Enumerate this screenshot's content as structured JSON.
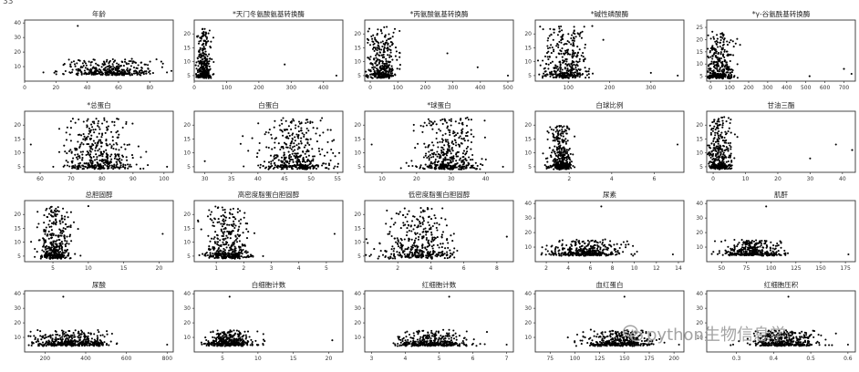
{
  "figure_label": "33",
  "watermark": {
    "text": "python生物信息学",
    "icon": "wechat-icon"
  },
  "style": {
    "point_color": "#000000",
    "frame_color": "#333333",
    "background": "#ffffff"
  },
  "chart_data": [
    {
      "type": "scatter",
      "title": "年龄",
      "xticks": [
        "0",
        "20",
        "40",
        "60",
        "80"
      ],
      "xlim": [
        0,
        95
      ],
      "yticks": [
        "10",
        "20",
        "30",
        "40"
      ],
      "ylim": [
        0,
        42
      ],
      "ymin": 4,
      "ymax": 40,
      "points": [
        [
          12,
          6
        ],
        [
          34,
          38
        ],
        [
          91,
          6
        ]
      ],
      "clusters": [
        {
          "cx": 55,
          "sx": 14,
          "base": 4,
          "spread": 10,
          "n": 360
        }
      ]
    },
    {
      "type": "scatter",
      "title": "*天门冬氨酸氨基转换酶",
      "xticks": [
        "0",
        "100",
        "200",
        "300",
        "400"
      ],
      "xlim": [
        0,
        460
      ],
      "yticks": [
        "5",
        "10",
        "15",
        "20"
      ],
      "ylim": [
        3,
        25
      ],
      "ymin": 4,
      "ymax": 23,
      "points": [
        [
          280,
          9
        ],
        [
          440,
          5
        ]
      ],
      "clusters": [
        {
          "cx": 30,
          "sx": 10,
          "base": 4,
          "spread": 18,
          "n": 340
        }
      ]
    },
    {
      "type": "scatter",
      "title": "*丙氨酸氨基转换酶",
      "xticks": [
        "0",
        "100",
        "200",
        "300",
        "400",
        "500"
      ],
      "xlim": [
        -20,
        520
      ],
      "yticks": [
        "5",
        "10",
        "15",
        "20"
      ],
      "ylim": [
        3,
        25
      ],
      "ymin": 4,
      "ymax": 23,
      "points": [
        [
          280,
          13
        ],
        [
          390,
          8
        ],
        [
          500,
          5
        ]
      ],
      "clusters": [
        {
          "cx": 40,
          "sx": 30,
          "base": 4,
          "spread": 18,
          "n": 360
        }
      ]
    },
    {
      "type": "scatter",
      "title": "*碱性磷酸酶",
      "xticks": [
        "100",
        "200",
        "300"
      ],
      "xlim": [
        20,
        380
      ],
      "yticks": [
        "5",
        "10",
        "15",
        "20"
      ],
      "ylim": [
        3,
        25
      ],
      "ymin": 4,
      "ymax": 23,
      "points": [
        [
          300,
          6
        ],
        [
          365,
          5
        ]
      ],
      "clusters": [
        {
          "cx": 95,
          "sx": 28,
          "base": 4,
          "spread": 18,
          "n": 380
        }
      ]
    },
    {
      "type": "scatter",
      "title": "*γ-谷氨酰基转换酶",
      "xticks": [
        "0",
        "100",
        "200",
        "300",
        "400",
        "500",
        "600",
        "700"
      ],
      "xlim": [
        -20,
        760
      ],
      "yticks": [
        "5",
        "10",
        "15",
        "20",
        "25"
      ],
      "ylim": [
        3,
        28
      ],
      "ymin": 4,
      "ymax": 25,
      "points": [
        [
          520,
          5
        ],
        [
          700,
          8
        ],
        [
          740,
          6
        ]
      ],
      "clusters": [
        {
          "cx": 40,
          "sx": 40,
          "base": 4,
          "spread": 18,
          "n": 360
        }
      ]
    },
    {
      "type": "scatter",
      "title": "*总蛋白",
      "xticks": [
        "60",
        "70",
        "80",
        "90",
        "100"
      ],
      "xlim": [
        55,
        103
      ],
      "yticks": [
        "5",
        "10",
        "15",
        "20"
      ],
      "ylim": [
        3,
        25
      ],
      "ymin": 4,
      "ymax": 23,
      "points": [
        [
          57,
          13
        ],
        [
          101,
          5
        ]
      ],
      "clusters": [
        {
          "cx": 79,
          "sx": 5.5,
          "base": 4,
          "spread": 18,
          "n": 420
        }
      ]
    },
    {
      "type": "scatter",
      "title": "白蛋白",
      "xticks": [
        "30",
        "35",
        "40",
        "45",
        "50",
        "55"
      ],
      "xlim": [
        28,
        56
      ],
      "yticks": [
        "5",
        "10",
        "15",
        "20"
      ],
      "ylim": [
        3,
        25
      ],
      "ymin": 4,
      "ymax": 23,
      "points": [
        [
          30,
          7
        ],
        [
          55,
          5
        ]
      ],
      "clusters": [
        {
          "cx": 47,
          "sx": 3.2,
          "base": 4,
          "spread": 18,
          "n": 420
        }
      ]
    },
    {
      "type": "scatter",
      "title": "*球蛋白",
      "xticks": [
        "10",
        "20",
        "30",
        "40"
      ],
      "xlim": [
        5,
        48
      ],
      "yticks": [
        "5",
        "10",
        "15",
        "20"
      ],
      "ylim": [
        3,
        25
      ],
      "ymin": 4,
      "ymax": 23,
      "points": [
        [
          7,
          13
        ],
        [
          45,
          5
        ]
      ],
      "clusters": [
        {
          "cx": 29,
          "sx": 4.5,
          "base": 4,
          "spread": 18,
          "n": 420
        }
      ]
    },
    {
      "type": "scatter",
      "title": "白球比例",
      "xticks": [
        "2",
        "4",
        "6"
      ],
      "xlim": [
        0.4,
        7.4
      ],
      "yticks": [
        "5",
        "10",
        "15",
        "20"
      ],
      "ylim": [
        3,
        25
      ],
      "ymin": 4,
      "ymax": 20,
      "points": [
        [
          7.1,
          13
        ]
      ],
      "clusters": [
        {
          "cx": 1.6,
          "sx": 0.25,
          "base": 4,
          "spread": 16,
          "n": 380
        }
      ]
    },
    {
      "type": "scatter",
      "title": "甘油三酯",
      "xticks": [
        "0",
        "10",
        "20",
        "30",
        "40"
      ],
      "xlim": [
        -2,
        44
      ],
      "yticks": [
        "5",
        "10",
        "15",
        "20"
      ],
      "ylim": [
        3,
        25
      ],
      "ymin": 4,
      "ymax": 23,
      "points": [
        [
          38,
          13
        ],
        [
          43,
          11
        ],
        [
          30,
          8
        ]
      ],
      "clusters": [
        {
          "cx": 2,
          "sx": 1.8,
          "base": 4,
          "spread": 18,
          "n": 360
        }
      ]
    },
    {
      "type": "scatter",
      "title": "总胆固醇",
      "xticks": [
        "5",
        "10",
        "15",
        "20"
      ],
      "xlim": [
        1,
        22
      ],
      "yticks": [
        "5",
        "10",
        "15",
        "20"
      ],
      "ylim": [
        3,
        25
      ],
      "ymin": 4,
      "ymax": 23,
      "points": [
        [
          20.5,
          13
        ],
        [
          10,
          23
        ]
      ],
      "clusters": [
        {
          "cx": 5.3,
          "sx": 1.1,
          "base": 4,
          "spread": 18,
          "n": 380
        }
      ]
    },
    {
      "type": "scatter",
      "title": "高密度脂蛋白胆固醇",
      "xticks": [
        "1",
        "2",
        "3",
        "4",
        "5"
      ],
      "xlim": [
        0.2,
        5.6
      ],
      "yticks": [
        "5",
        "10",
        "15",
        "20"
      ],
      "ylim": [
        3,
        25
      ],
      "ymin": 4,
      "ymax": 23,
      "points": [
        [
          5.3,
          13
        ],
        [
          2.7,
          5
        ]
      ],
      "clusters": [
        {
          "cx": 1.4,
          "sx": 0.4,
          "base": 4,
          "spread": 18,
          "n": 380
        }
      ]
    },
    {
      "type": "scatter",
      "title": "低密度脂蛋白胆固醇",
      "xticks": [
        "2",
        "4",
        "6",
        "8"
      ],
      "xlim": [
        0,
        9
      ],
      "yticks": [
        "5",
        "10",
        "15",
        "20"
      ],
      "ylim": [
        3,
        25
      ],
      "ymin": 4,
      "ymax": 23,
      "points": [
        [
          8.6,
          12
        ],
        [
          0.3,
          5
        ]
      ],
      "clusters": [
        {
          "cx": 3.3,
          "sx": 1.0,
          "base": 4,
          "spread": 18,
          "n": 400
        }
      ]
    },
    {
      "type": "scatter",
      "title": "尿素",
      "xticks": [
        "2",
        "4",
        "6",
        "8",
        "10",
        "12",
        "14"
      ],
      "xlim": [
        1,
        14.5
      ],
      "yticks": [
        "10",
        "20",
        "30",
        "40"
      ],
      "ylim": [
        0,
        42
      ],
      "ymin": 4,
      "ymax": 38,
      "points": [
        [
          13.5,
          5
        ],
        [
          7,
          38
        ]
      ],
      "clusters": [
        {
          "cx": 5.5,
          "sx": 1.6,
          "base": 4,
          "spread": 10,
          "n": 380
        }
      ]
    },
    {
      "type": "scatter",
      "title": "肌酐",
      "xticks": [
        "50",
        "75",
        "100",
        "125",
        "150",
        "175"
      ],
      "xlim": [
        35,
        185
      ],
      "yticks": [
        "10",
        "20",
        "30",
        "40"
      ],
      "ylim": [
        0,
        42
      ],
      "ymin": 4,
      "ymax": 38,
      "points": [
        [
          95,
          38
        ],
        [
          178,
          5
        ]
      ],
      "clusters": [
        {
          "cx": 80,
          "sx": 16,
          "base": 4,
          "spread": 10,
          "n": 380
        }
      ]
    },
    {
      "type": "scatter",
      "title": "尿酸",
      "xticks": [
        "200",
        "400",
        "600",
        "800"
      ],
      "xlim": [
        100,
        830
      ],
      "yticks": [
        "10",
        "20",
        "30",
        "40"
      ],
      "ylim": [
        0,
        42
      ],
      "ymin": 4,
      "ymax": 38,
      "points": [
        [
          290,
          38
        ],
        [
          800,
          5
        ]
      ],
      "clusters": [
        {
          "cx": 330,
          "sx": 95,
          "base": 4,
          "spread": 10,
          "n": 400
        }
      ]
    },
    {
      "type": "scatter",
      "title": "白细胞计数",
      "xticks": [
        "5",
        "10",
        "15",
        "20"
      ],
      "xlim": [
        1,
        22
      ],
      "yticks": [
        "10",
        "20",
        "30",
        "40"
      ],
      "ylim": [
        0,
        42
      ],
      "ymin": 4,
      "ymax": 38,
      "points": [
        [
          6,
          38
        ],
        [
          20.5,
          8
        ]
      ],
      "clusters": [
        {
          "cx": 6,
          "sx": 1.5,
          "base": 4,
          "spread": 10,
          "n": 400
        }
      ]
    },
    {
      "type": "scatter",
      "title": "红细胞计数",
      "xticks": [
        "3",
        "4",
        "5",
        "6",
        "7"
      ],
      "xlim": [
        2.8,
        7.2
      ],
      "yticks": [
        "10",
        "20",
        "30",
        "40"
      ],
      "ylim": [
        0,
        42
      ],
      "ymin": 4,
      "ymax": 38,
      "points": [
        [
          5.3,
          38
        ],
        [
          7,
          5
        ]
      ],
      "clusters": [
        {
          "cx": 4.8,
          "sx": 0.5,
          "base": 4,
          "spread": 10,
          "n": 400
        }
      ]
    },
    {
      "type": "scatter",
      "title": "血红蛋白",
      "xticks": [
        "75",
        "100",
        "125",
        "150",
        "175",
        "200"
      ],
      "xlim": [
        60,
        210
      ],
      "yticks": [
        "10",
        "20",
        "30",
        "40"
      ],
      "ylim": [
        0,
        42
      ],
      "ymin": 4,
      "ymax": 38,
      "points": [
        [
          150,
          38
        ],
        [
          205,
          5
        ]
      ],
      "clusters": [
        {
          "cx": 145,
          "sx": 16,
          "base": 4,
          "spread": 10,
          "n": 400
        }
      ]
    },
    {
      "type": "scatter",
      "title": "红细胞压积",
      "xticks": [
        "0.3",
        "0.4",
        "0.5",
        "0.6"
      ],
      "xlim": [
        0.22,
        0.62
      ],
      "yticks": [
        "10",
        "20",
        "30",
        "40"
      ],
      "ylim": [
        0,
        42
      ],
      "ymin": 4,
      "ymax": 38,
      "points": [
        [
          0.44,
          38
        ],
        [
          0.6,
          5
        ]
      ],
      "clusters": [
        {
          "cx": 0.43,
          "sx": 0.045,
          "base": 4,
          "spread": 10,
          "n": 400
        }
      ]
    }
  ]
}
